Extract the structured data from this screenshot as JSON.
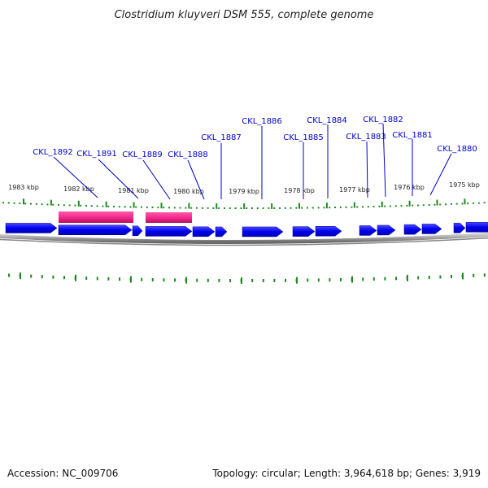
{
  "title": "Clostridium kluyveri DSM 555, complete genome",
  "accession": "Accession: NC_009706",
  "summary": "Topology: circular; Length: 3,964,618 bp; Genes: 3,919",
  "colors": {
    "gene": "#0000ee",
    "highlight": "#ee2288",
    "label": "#0000cc",
    "tick": "#228822",
    "backbone": "#888888"
  },
  "kbp_labels": [
    "1983 kbp",
    "1982 kbp",
    "1981 kbp",
    "1980 kbp",
    "1979 kbp",
    "1978 kbp",
    "1977 kbp",
    "1976 kbp",
    "1975 kbp"
  ],
  "gene_labels": [
    "CKL_1892",
    "CKL_1891",
    "CKL_1889",
    "CKL_1888",
    "CKL_1887",
    "CKL_1886",
    "CKL_1885",
    "CKL_1884",
    "CKL_1883",
    "CKL_1882",
    "CKL_1881",
    "CKL_1880"
  ]
}
